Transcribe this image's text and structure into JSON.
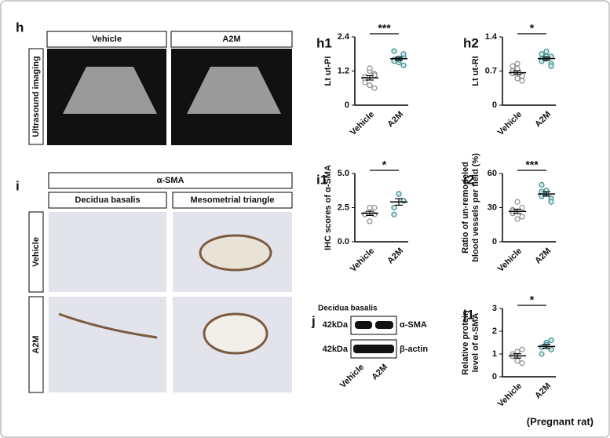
{
  "figure": {
    "panels": [
      "h",
      "i",
      "j"
    ],
    "ultrasound": {
      "ylabel": "Ultrasound imaging",
      "groups": [
        "Vehicle",
        "A2M"
      ]
    },
    "ihc": {
      "stain": "α-SMA",
      "regions": [
        "Decidua basalis",
        "Mesometrial triangle"
      ],
      "groups": [
        "Vehicle",
        "A2M"
      ]
    },
    "blot": {
      "title": "Decidua basalis",
      "bands": [
        {
          "size": "42kDa",
          "protein": "α-SMA"
        },
        {
          "size": "42kDa",
          "protein": "β-actin"
        }
      ],
      "groups": [
        "Vehicle",
        "A2M"
      ]
    },
    "footnote": "(Pregnant rat)"
  },
  "chart_data": [
    {
      "type": "dot",
      "title": "h1",
      "ylabel": [
        "Lt ut-PI"
      ],
      "annotation": "***",
      "ylim": [
        0,
        2.4
      ],
      "yticks": [
        0,
        1.2,
        2.4
      ],
      "series": [
        {
          "name": "Vehicle",
          "color": "#8c8c8c",
          "values": [
            1.0,
            0.7,
            1.1,
            0.9,
            1.2,
            0.6,
            0.8,
            1.3,
            1.05
          ]
        },
        {
          "name": "A2M",
          "color": "#3f8f8f",
          "values": [
            1.6,
            1.5,
            1.7,
            1.9,
            1.6,
            1.8,
            1.55,
            1.65,
            1.4
          ]
        }
      ]
    },
    {
      "type": "dot",
      "title": "h2",
      "ylabel": [
        "Lt ut-RI"
      ],
      "annotation": "*",
      "ylim": [
        0,
        1.4
      ],
      "yticks": [
        0,
        0.7,
        1.4
      ],
      "series": [
        {
          "name": "Vehicle",
          "color": "#8c8c8c",
          "values": [
            0.7,
            0.55,
            0.6,
            0.8,
            0.85,
            0.5,
            0.65,
            0.75,
            0.6
          ]
        },
        {
          "name": "A2M",
          "color": "#3f8f8f",
          "values": [
            0.95,
            1.0,
            0.85,
            0.9,
            1.1,
            0.8,
            1.05,
            0.95,
            1.0
          ]
        }
      ]
    },
    {
      "type": "dot",
      "title": "i1",
      "ylabel": [
        "IHC scores of α-SMA"
      ],
      "annotation": "*",
      "ylim": [
        0,
        5
      ],
      "yticks": [
        {
          "value": 0,
          "label": "0.0"
        },
        2.5,
        {
          "value": 5,
          "label": "5.0"
        }
      ],
      "series": [
        {
          "name": "Vehicle",
          "color": "#8c8c8c",
          "values": [
            2.0,
            1.5,
            2.5,
            2.0,
            2.5,
            2.0
          ]
        },
        {
          "name": "A2M",
          "color": "#3f8f8f",
          "values": [
            2.5,
            3.5,
            3.0,
            2.0,
            3.5,
            3.0
          ]
        }
      ]
    },
    {
      "type": "dot",
      "title": "i2",
      "ylabel": [
        "Ratio of un-remodeled",
        "blood vessels per field (%)"
      ],
      "annotation": "***",
      "ylim": [
        0,
        60
      ],
      "yticks": [
        0,
        30,
        60
      ],
      "series": [
        {
          "name": "Vehicle",
          "color": "#8c8c8c",
          "values": [
            25,
            20,
            30,
            28,
            35,
            22,
            27
          ]
        },
        {
          "name": "A2M",
          "color": "#3f8f8f",
          "values": [
            40,
            45,
            38,
            50,
            42,
            35,
            44
          ]
        }
      ]
    },
    {
      "type": "dot",
      "title": "j1",
      "ylabel": [
        "Relative protein",
        "level of α-SMA"
      ],
      "annotation": "*",
      "ylim": [
        0,
        3
      ],
      "yticks": [
        0,
        1,
        2,
        3
      ],
      "series": [
        {
          "name": "Vehicle",
          "color": "#8c8c8c",
          "values": [
            1.0,
            0.7,
            1.2,
            0.9,
            1.1,
            0.6
          ]
        },
        {
          "name": "A2M",
          "color": "#3f8f8f",
          "values": [
            1.3,
            1.5,
            1.6,
            1.0,
            1.4,
            1.2
          ]
        }
      ]
    }
  ]
}
